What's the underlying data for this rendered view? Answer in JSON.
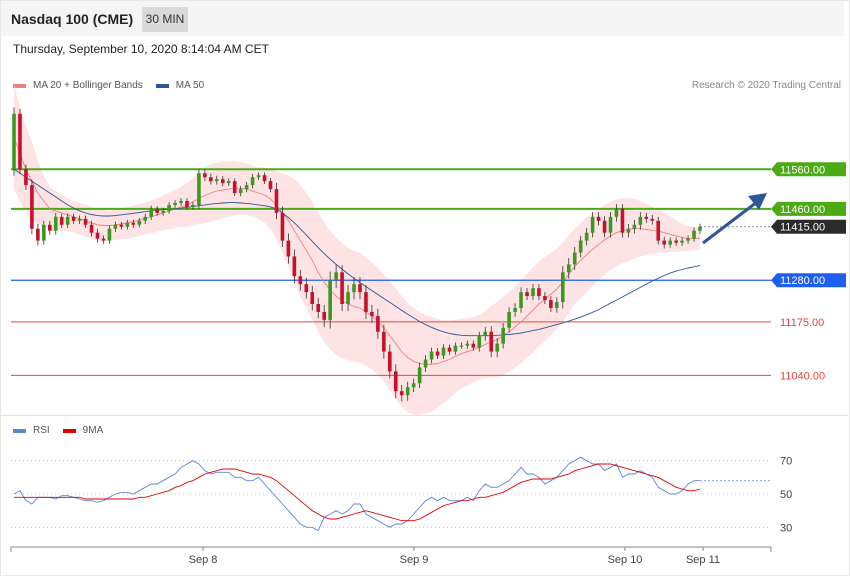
{
  "header": {
    "title": "Nasdaq 100 (CME)",
    "timeframe": "30 MIN"
  },
  "datetime": "Thursday, September 10, 2020 8:14:04 AM CET",
  "legend_main": [
    {
      "label": "MA 20 + Bollinger Bands",
      "color": "#f08080"
    },
    {
      "label": "MA 50",
      "color": "#2e5597"
    }
  ],
  "legend_rsi": [
    {
      "label": "RSI",
      "color": "#5b86d6"
    },
    {
      "label": "9MA",
      "color": "#e00000"
    }
  ],
  "credit": "Research © 2020 Trading Central",
  "colors": {
    "up": "#3a9a1f",
    "down": "#c8102e",
    "resistance": "#4caa14",
    "support": "#1f5ff0",
    "weak_support": "#e8443a",
    "last": "#2b2b2b"
  },
  "chart_data": [
    {
      "type": "candlestick",
      "ylim": [
        10940,
        11760
      ],
      "levels": [
        {
          "value": 11560,
          "label": "11560.00",
          "kind": "resistance"
        },
        {
          "value": 11460,
          "label": "11460.00",
          "kind": "resistance"
        },
        {
          "value": 11415,
          "label": "11415.00",
          "kind": "last"
        },
        {
          "value": 11280,
          "label": "11280.00",
          "kind": "support"
        },
        {
          "value": 11175,
          "label": "11175.00",
          "kind": "weak_support"
        },
        {
          "value": 11040,
          "label": "11040.00",
          "kind": "weak_support"
        }
      ],
      "x_ticks": [
        "Sep 8",
        "Sep 9",
        "Sep 10",
        "Sep 11"
      ],
      "series": [
        {
          "name": "MA 20 + Bollinger Bands",
          "color": "#f08080"
        },
        {
          "name": "MA 50",
          "color": "#2e5597"
        }
      ],
      "closes": [
        11700,
        11560,
        11520,
        11410,
        11380,
        11420,
        11405,
        11440,
        11420,
        11440,
        11430,
        11435,
        11420,
        11400,
        11385,
        11380,
        11410,
        11420,
        11415,
        11425,
        11420,
        11430,
        11440,
        11460,
        11450,
        11455,
        11470,
        11475,
        11480,
        11465,
        11470,
        11550,
        11540,
        11530,
        11535,
        11525,
        11530,
        11500,
        11510,
        11520,
        11540,
        11545,
        11530,
        11510,
        11450,
        11380,
        11340,
        11290,
        11270,
        11250,
        11220,
        11200,
        11180,
        11280,
        11300,
        11220,
        11250,
        11270,
        11250,
        11200,
        11190,
        11150,
        11100,
        11050,
        11000,
        10990,
        11010,
        11020,
        11060,
        11080,
        11100,
        11090,
        11110,
        11100,
        11115,
        11115,
        11120,
        11110,
        11140,
        11150,
        11100,
        11120,
        11160,
        11200,
        11210,
        11250,
        11240,
        11260,
        11240,
        11230,
        11210,
        11225,
        11300,
        11320,
        11350,
        11380,
        11400,
        11440,
        11430,
        11400,
        11440,
        11460,
        11400,
        11410,
        11420,
        11440,
        11435,
        11430,
        11380,
        11370,
        11380,
        11375,
        11380,
        11385,
        11405,
        11415
      ],
      "ranges": [
        40,
        30,
        30,
        35,
        30,
        25,
        25,
        25,
        20,
        20,
        20,
        20,
        20,
        25,
        25,
        20,
        20,
        20,
        18,
        18,
        18,
        18,
        20,
        20,
        18,
        18,
        18,
        18,
        18,
        18,
        18,
        25,
        25,
        22,
        22,
        20,
        18,
        18,
        20,
        20,
        20,
        18,
        18,
        20,
        40,
        40,
        45,
        45,
        40,
        40,
        40,
        40,
        45,
        55,
        50,
        45,
        45,
        45,
        45,
        45,
        45,
        45,
        45,
        45,
        45,
        40,
        35,
        30,
        30,
        28,
        25,
        22,
        22,
        20,
        20,
        20,
        20,
        20,
        25,
        30,
        35,
        35,
        30,
        30,
        30,
        30,
        25,
        25,
        25,
        25,
        25,
        30,
        40,
        40,
        35,
        30,
        30,
        30,
        30,
        30,
        30,
        30,
        30,
        30,
        30,
        30,
        25,
        25,
        25,
        25,
        20,
        20,
        20,
        20,
        20,
        20
      ],
      "opens": [
        11560,
        11700,
        11560,
        11520,
        11410,
        11380,
        11420,
        11405,
        11440,
        11420,
        11440,
        11430,
        11435,
        11420,
        11400,
        11385,
        11380,
        11410,
        11420,
        11415,
        11425,
        11420,
        11430,
        11440,
        11460,
        11450,
        11455,
        11470,
        11475,
        11480,
        11465,
        11470,
        11550,
        11540,
        11530,
        11535,
        11525,
        11530,
        11500,
        11510,
        11520,
        11540,
        11545,
        11530,
        11510,
        11450,
        11380,
        11340,
        11290,
        11270,
        11250,
        11220,
        11200,
        11180,
        11280,
        11300,
        11220,
        11250,
        11270,
        11250,
        11200,
        11190,
        11150,
        11100,
        11050,
        11000,
        10990,
        11010,
        11020,
        11060,
        11080,
        11100,
        11090,
        11110,
        11100,
        11115,
        11115,
        11120,
        11110,
        11140,
        11150,
        11100,
        11120,
        11160,
        11200,
        11210,
        11250,
        11240,
        11260,
        11240,
        11230,
        11210,
        11225,
        11300,
        11320,
        11350,
        11380,
        11400,
        11440,
        11430,
        11400,
        11440,
        11460,
        11400,
        11410,
        11420,
        11440,
        11435,
        11430,
        11380,
        11370,
        11380,
        11375,
        11380,
        11385,
        11405
      ],
      "ma20": [
        11640,
        11600,
        11560,
        11530,
        11500,
        11480,
        11460,
        11455,
        11450,
        11445,
        11440,
        11435,
        11430,
        11425,
        11420,
        11418,
        11418,
        11420,
        11422,
        11425,
        11428,
        11432,
        11436,
        11440,
        11445,
        11450,
        11455,
        11460,
        11465,
        11470,
        11478,
        11486,
        11494,
        11500,
        11505,
        11508,
        11510,
        11512,
        11512,
        11510,
        11505,
        11500,
        11495,
        11485,
        11470,
        11450,
        11430,
        11405,
        11380,
        11355,
        11330,
        11300,
        11275,
        11255,
        11240,
        11228,
        11220,
        11214,
        11210,
        11200,
        11190,
        11176,
        11160,
        11140,
        11120,
        11100,
        11085,
        11075,
        11070,
        11068,
        11068,
        11070,
        11075,
        11080,
        11088,
        11095,
        11100,
        11105,
        11110,
        11118,
        11125,
        11130,
        11140,
        11150,
        11162,
        11175,
        11190,
        11205,
        11220,
        11232,
        11245,
        11258,
        11275,
        11295,
        11315,
        11330,
        11345,
        11358,
        11370,
        11382,
        11392,
        11400,
        11405,
        11408,
        11410,
        11410,
        11408,
        11406,
        11404,
        11400,
        11396,
        11392,
        11388,
        11385,
        11385,
        11386
      ],
      "bb_width": [
        130,
        120,
        110,
        100,
        80,
        65,
        55,
        50,
        45,
        42,
        40,
        40,
        40,
        40,
        40,
        40,
        38,
        38,
        38,
        40,
        40,
        40,
        40,
        42,
        42,
        44,
        46,
        48,
        50,
        55,
        60,
        65,
        70,
        72,
        72,
        72,
        70,
        68,
        66,
        65,
        65,
        65,
        70,
        75,
        85,
        100,
        115,
        130,
        140,
        145,
        148,
        150,
        150,
        150,
        148,
        145,
        142,
        140,
        138,
        136,
        135,
        135,
        135,
        138,
        140,
        140,
        138,
        135,
        130,
        125,
        120,
        112,
        105,
        98,
        92,
        88,
        85,
        82,
        82,
        85,
        90,
        95,
        98,
        100,
        102,
        104,
        106,
        108,
        108,
        106,
        104,
        102,
        100,
        98,
        96,
        95,
        95,
        92,
        90,
        88,
        86,
        84,
        82,
        80,
        75,
        70,
        65,
        60,
        55,
        50,
        45,
        40,
        35,
        32,
        30,
        28
      ],
      "ma50": [
        11560,
        11550,
        11540,
        11530,
        11520,
        11510,
        11500,
        11490,
        11480,
        11470,
        11462,
        11455,
        11450,
        11446,
        11443,
        11442,
        11442,
        11443,
        11445,
        11447,
        11449,
        11451,
        11453,
        11455,
        11457,
        11458,
        11459,
        11460,
        11462,
        11464,
        11466,
        11468,
        11470,
        11472,
        11474,
        11475,
        11476,
        11476,
        11475,
        11474,
        11472,
        11470,
        11468,
        11465,
        11460,
        11450,
        11438,
        11425,
        11410,
        11394,
        11378,
        11362,
        11347,
        11333,
        11320,
        11308,
        11296,
        11285,
        11274,
        11264,
        11254,
        11244,
        11234,
        11224,
        11214,
        11204,
        11194,
        11185,
        11176,
        11168,
        11161,
        11155,
        11150,
        11146,
        11143,
        11141,
        11140,
        11140,
        11140,
        11140,
        11140,
        11141,
        11142,
        11143,
        11145,
        11147,
        11150,
        11153,
        11156,
        11160,
        11164,
        11168,
        11172,
        11177,
        11182,
        11187,
        11193,
        11199,
        11206,
        11214,
        11222,
        11230,
        11238,
        11246,
        11254,
        11262,
        11270,
        11278,
        11285,
        11292,
        11298,
        11303,
        11307,
        11311,
        11314,
        11317
      ]
    },
    {
      "type": "line",
      "ylim": [
        20,
        80
      ],
      "y_ticks": [
        70,
        50,
        30
      ],
      "series": [
        {
          "name": "RSI",
          "color": "#5b86d6",
          "values": [
            50,
            52,
            46,
            44,
            48,
            48,
            48,
            47,
            49,
            49,
            48,
            47,
            46,
            46,
            45,
            46,
            48,
            50,
            51,
            51,
            50,
            52,
            54,
            56,
            56,
            58,
            60,
            62,
            66,
            68,
            70,
            68,
            64,
            62,
            63,
            63,
            63,
            60,
            60,
            58,
            58,
            60,
            56,
            52,
            48,
            44,
            40,
            36,
            32,
            30,
            30,
            28,
            36,
            38,
            40,
            38,
            40,
            44,
            44,
            38,
            36,
            34,
            32,
            30,
            32,
            32,
            34,
            38,
            42,
            46,
            48,
            46,
            48,
            46,
            46,
            46,
            48,
            46,
            52,
            56,
            54,
            54,
            56,
            58,
            62,
            66,
            62,
            62,
            60,
            56,
            58,
            60,
            64,
            68,
            70,
            72,
            70,
            68,
            68,
            64,
            66,
            68,
            60,
            62,
            62,
            64,
            62,
            60,
            54,
            52,
            50,
            50,
            52,
            56,
            58,
            58
          ]
        },
        {
          "name": "9MA",
          "color": "#e00000",
          "values": [
            48,
            48,
            48,
            48,
            48,
            48,
            48,
            48,
            48,
            48,
            48,
            48,
            47,
            47,
            47,
            47,
            47,
            47,
            47,
            47,
            47,
            48,
            48,
            49,
            50,
            51,
            52,
            54,
            55,
            57,
            58,
            60,
            62,
            63,
            64,
            65,
            65,
            65,
            64,
            63,
            62,
            62,
            61,
            60,
            58,
            55,
            52,
            49,
            46,
            43,
            40,
            38,
            36,
            35,
            35,
            36,
            37,
            38,
            39,
            40,
            39,
            38,
            37,
            36,
            35,
            34,
            34,
            34,
            35,
            37,
            39,
            41,
            43,
            44,
            45,
            46,
            46,
            47,
            48,
            48,
            49,
            50,
            51,
            53,
            55,
            57,
            58,
            59,
            59,
            59,
            59,
            60,
            61,
            62,
            64,
            65,
            66,
            67,
            68,
            68,
            68,
            67,
            66,
            65,
            64,
            63,
            62,
            61,
            60,
            58,
            56,
            54,
            53,
            52,
            52,
            53
          ]
        }
      ],
      "x_ticks": [
        "Sep 8",
        "Sep 9",
        "Sep 10",
        "Sep 11"
      ]
    }
  ]
}
